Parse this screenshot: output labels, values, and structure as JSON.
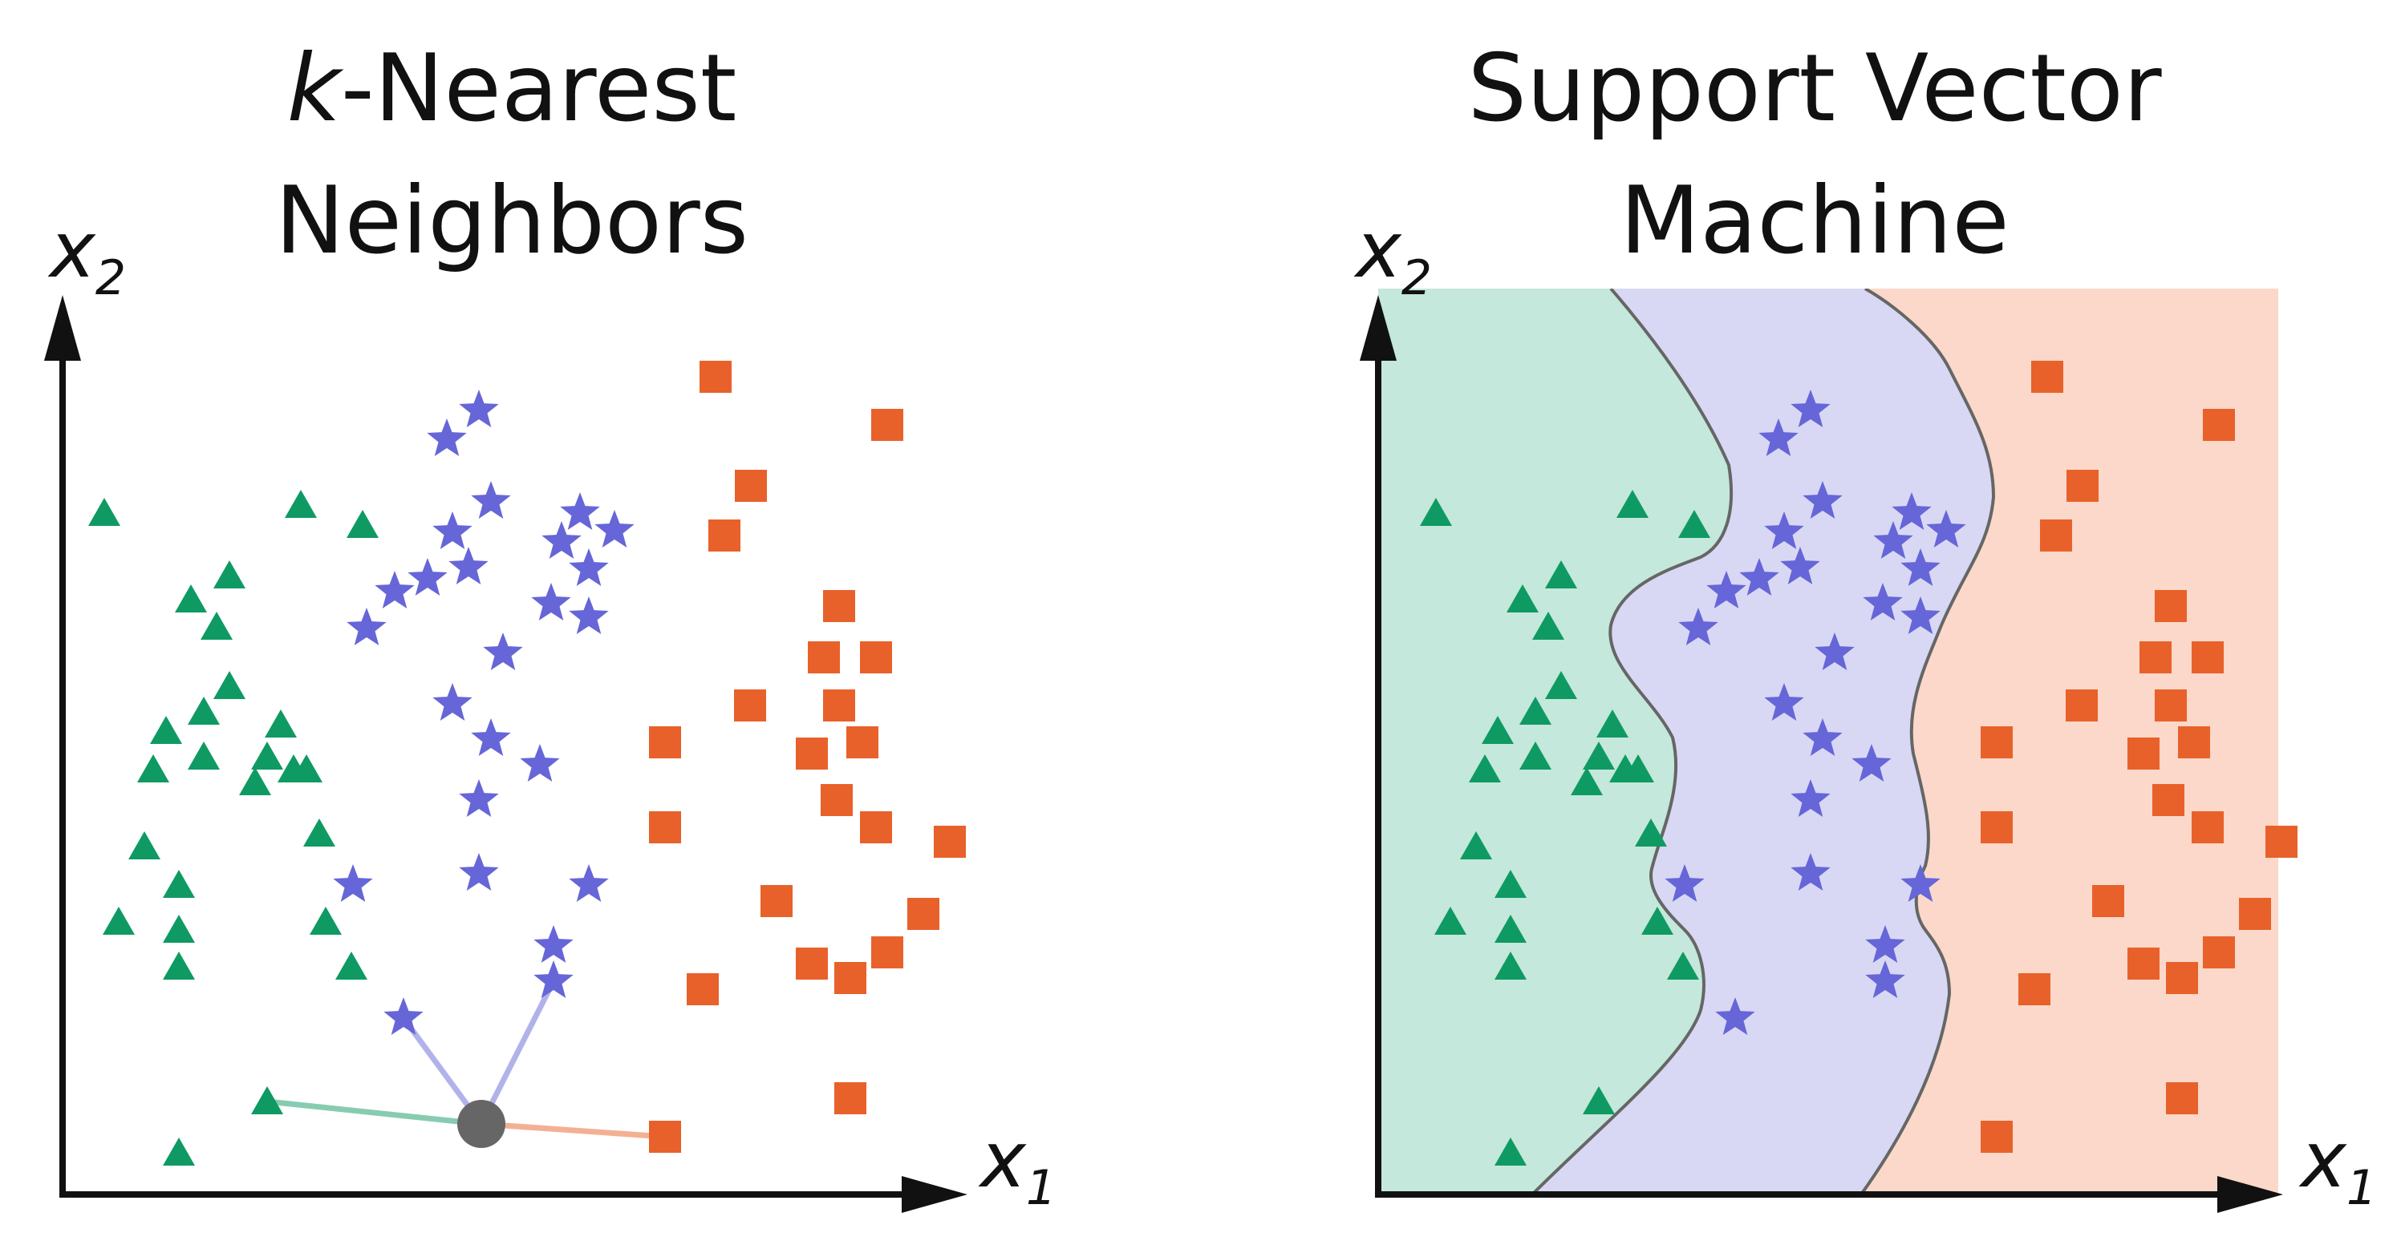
{
  "panels": [
    {
      "id": "knn",
      "title_line1_italic": "k",
      "title_line1_rest": "-Nearest",
      "title_line2": "Neighbors",
      "x_axis_label": "x",
      "x_axis_sub": "1",
      "y_axis_label": "x",
      "y_axis_sub": "2"
    },
    {
      "id": "svm",
      "title_line1": "Support Vector",
      "title_line2": "Machine",
      "x_axis_label": "x",
      "x_axis_sub": "1",
      "y_axis_label": "x",
      "y_axis_sub": "2"
    }
  ],
  "colors": {
    "triangle": "#0f9a63",
    "star": "#6666d8",
    "square": "#e8612a",
    "query": "#666666",
    "region_triangle": "#c4e8db",
    "region_star": "#d8d8f4",
    "region_square": "#fbd8c9",
    "boundary": "#666666",
    "axis": "#111111"
  },
  "classes": [
    "triangle",
    "star",
    "square"
  ],
  "knn_neighbors": [
    "triangle",
    "star",
    "star",
    "square"
  ]
}
